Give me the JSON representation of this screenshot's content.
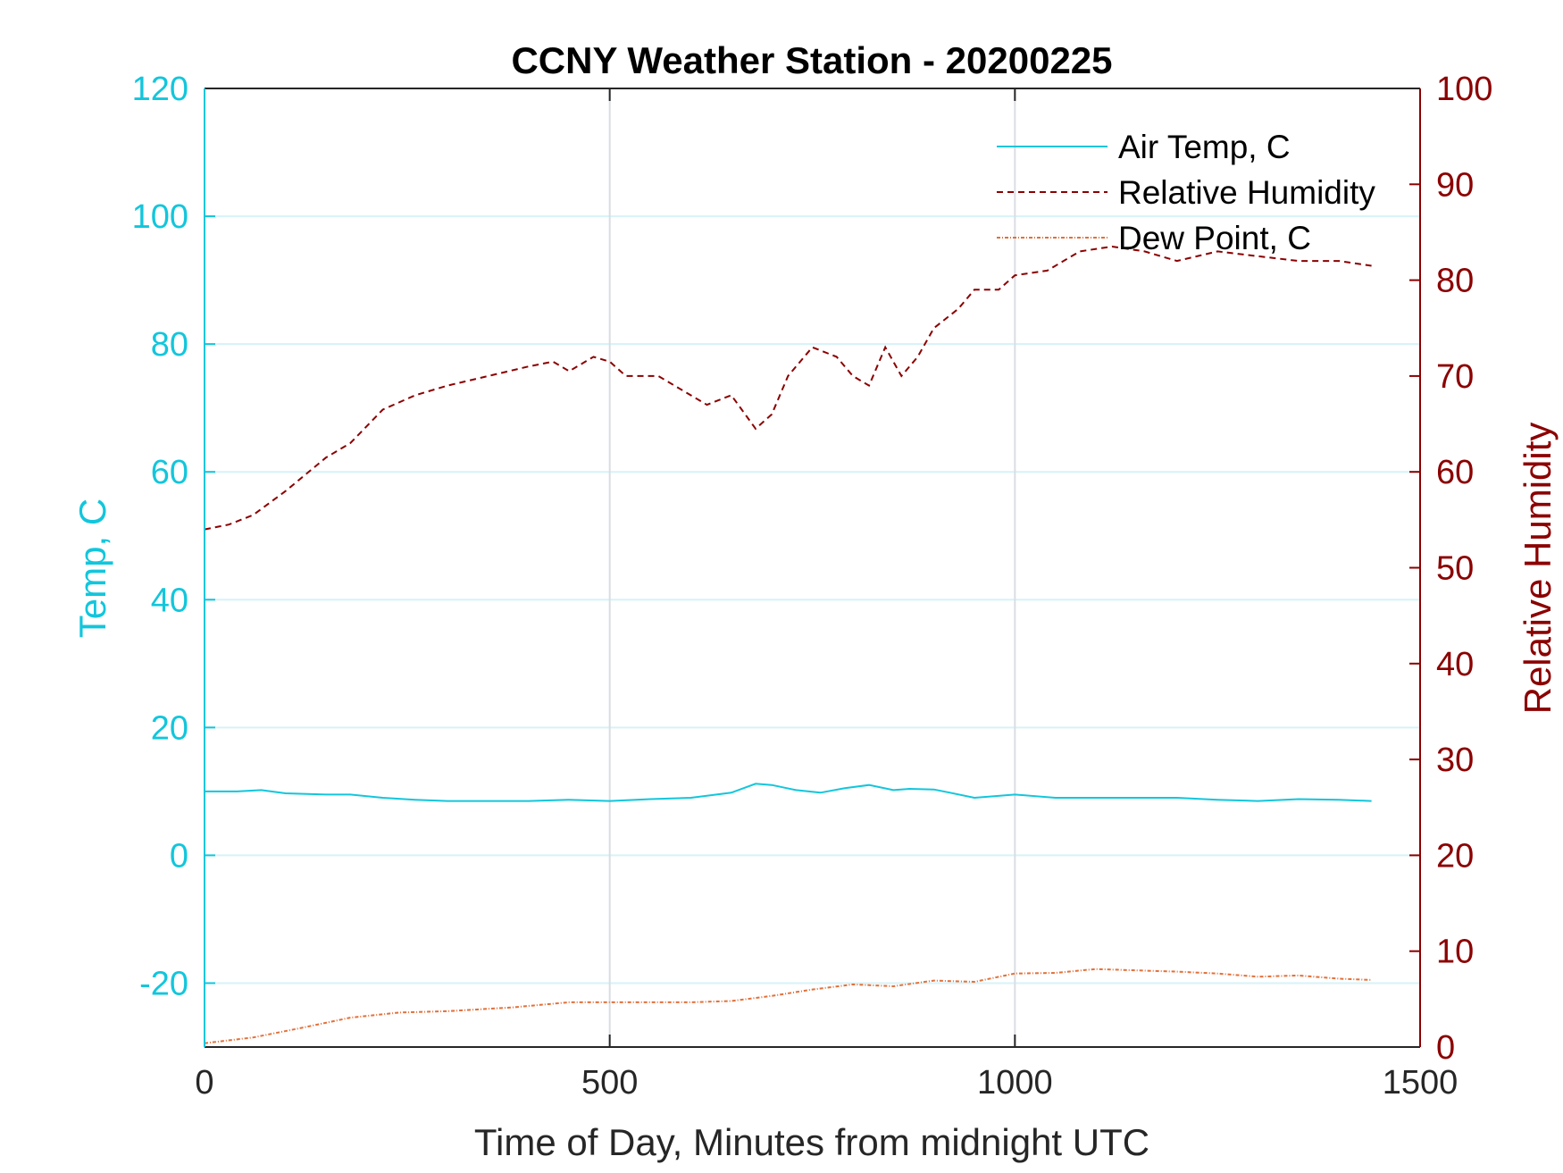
{
  "chart_data": {
    "type": "line",
    "title": "CCNY Weather Station - 20200225",
    "xlabel": "Time of Day, Minutes from midnight UTC",
    "ylabel_left": "Temp, C",
    "ylabel_right": "Relative Humidity",
    "xlim": [
      0,
      1500
    ],
    "ylim_left": [
      -30,
      120
    ],
    "ylim_right": [
      0,
      100
    ],
    "x_ticks": [
      0,
      500,
      1000,
      1500
    ],
    "y_ticks_left": [
      -20,
      0,
      20,
      40,
      60,
      80,
      100,
      120
    ],
    "y_ticks_right": [
      0,
      10,
      20,
      30,
      40,
      50,
      60,
      70,
      80,
      90,
      100
    ],
    "grid": true,
    "legend_position": "top-right",
    "colors": {
      "temp": "#12c6dc",
      "rh": "#8b0000",
      "dew": "#e2703a",
      "axis": "#262626",
      "grid": "#d6f3f8",
      "xgrid": "#d9dde3"
    },
    "series": [
      {
        "name": "Air Temp, C",
        "axis": "left",
        "style": "solid",
        "color_key": "temp",
        "x": [
          0,
          40,
          70,
          100,
          150,
          180,
          220,
          260,
          300,
          350,
          400,
          450,
          500,
          550,
          600,
          650,
          680,
          700,
          730,
          760,
          790,
          820,
          850,
          870,
          900,
          920,
          950,
          1000,
          1050,
          1100,
          1150,
          1200,
          1250,
          1300,
          1350,
          1400,
          1440
        ],
        "y": [
          10,
          10,
          10.2,
          9.7,
          9.5,
          9.5,
          9,
          8.7,
          8.5,
          8.5,
          8.5,
          8.7,
          8.5,
          8.8,
          9,
          9.8,
          11.2,
          11,
          10.2,
          9.8,
          10.5,
          11,
          10.2,
          10.4,
          10.3,
          9.8,
          9,
          9.5,
          9,
          9,
          9,
          9,
          8.7,
          8.5,
          8.8,
          8.7,
          8.5
        ]
      },
      {
        "name": "Relative Humidity",
        "axis": "right",
        "style": "dashed",
        "color_key": "rh",
        "x": [
          0,
          30,
          60,
          100,
          150,
          180,
          220,
          260,
          300,
          350,
          400,
          430,
          450,
          480,
          500,
          520,
          560,
          600,
          620,
          650,
          680,
          700,
          720,
          750,
          780,
          800,
          820,
          840,
          860,
          880,
          900,
          930,
          950,
          980,
          1000,
          1040,
          1080,
          1120,
          1160,
          1200,
          1250,
          1300,
          1350,
          1400,
          1440
        ],
        "y": [
          54,
          54.5,
          55.5,
          58,
          61.5,
          63,
          66.5,
          68,
          69,
          70,
          71,
          71.5,
          70.5,
          72,
          71.5,
          70,
          70,
          68,
          67,
          68,
          64.5,
          66,
          70,
          73,
          72,
          70,
          69,
          73,
          70,
          72,
          75,
          77,
          79,
          79,
          80.5,
          81,
          83,
          83.5,
          83,
          82,
          83,
          82.5,
          82,
          82,
          81.5
        ]
      },
      {
        "name": "Dew Point, C",
        "axis": "left",
        "style": "dashdot",
        "color_key": "dew",
        "x": [
          0,
          60,
          120,
          180,
          240,
          300,
          380,
          450,
          520,
          600,
          650,
          700,
          750,
          800,
          850,
          900,
          950,
          1000,
          1050,
          1100,
          1150,
          1200,
          1250,
          1300,
          1350,
          1400,
          1440
        ],
        "y": [
          -29.4,
          -28.5,
          -27,
          -25.4,
          -24.6,
          -24.4,
          -23.8,
          -23,
          -23,
          -23,
          -22.8,
          -22,
          -21,
          -20.2,
          -20.5,
          -19.6,
          -19.8,
          -18.5,
          -18.4,
          -17.8,
          -18,
          -18.2,
          -18.5,
          -19,
          -18.8,
          -19.3,
          -19.5
        ]
      }
    ]
  }
}
